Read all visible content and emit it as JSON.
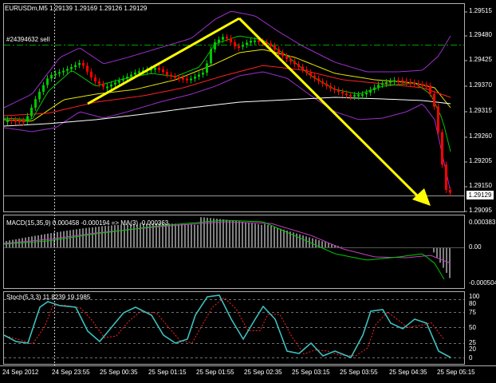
{
  "main_panel": {
    "symbol_info": "EURUSDm,M5  1.29139 1.29169 1.29126 1.29129",
    "order_label": "#24394632 sell",
    "current_price": "1.29129",
    "y_labels": [
      "1.29515",
      "1.29480",
      "1.29425",
      "1.29370",
      "1.29315",
      "1.29260",
      "1.29205",
      "1.29150",
      "1.29095"
    ]
  },
  "macd_panel": {
    "title": "MACD(15,35,9) 0.000458 -0.000194 => MA(3) -0.000363",
    "y_labels": [
      "0.000383",
      "0.00",
      "-0.000504"
    ]
  },
  "stoch_panel": {
    "title": "Stoch(5,3,3) 11.8239 19.1985",
    "y_labels": [
      "100",
      "80",
      "75",
      "50",
      "25",
      "20",
      "0"
    ]
  },
  "x_labels": [
    "24 Sep 2012",
    "24 Sep 23:55",
    "25 Sep 00:35",
    "25 Sep 01:15",
    "25 Sep 01:55",
    "25 Sep 02:35",
    "25 Sep 03:15",
    "25 Sep 03:55",
    "25 Sep 04:35",
    "25 Sep 05:15"
  ],
  "colors": {
    "bull_candle": "#00c800",
    "bear_candle": "#ff0000",
    "bollinger": "#9b2fc8",
    "ma_fast": "#00c800",
    "ma_mid": "#e6e600",
    "ma_slow": "#ff2020",
    "ma_long": "#ffffff",
    "annotation_arrow": "#ffff00",
    "macd_signal": "#c040c0",
    "macd_ma": "#00c800",
    "stoch_main": "#3fbfbf",
    "stoch_signal": "#ff2020"
  }
}
